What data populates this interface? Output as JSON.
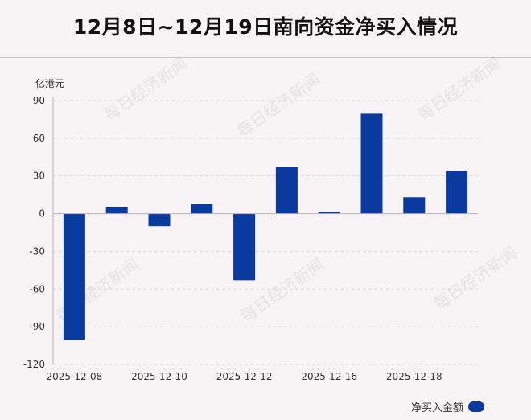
{
  "title": "12月8日~12月19日南向资金净买入情况",
  "watermark": "每日经济新闻",
  "legend_label": "净买入金额",
  "colors": {
    "bar": "#0b3a9e",
    "grid": "#d9d3d6",
    "axis": "#b8b2b5"
  },
  "chart_data": {
    "type": "bar",
    "unit_label": "亿港元",
    "categories": [
      "2025-12-08",
      "2025-12-09",
      "2025-12-10",
      "2025-12-11",
      "2025-12-12",
      "2025-12-15",
      "2025-12-16",
      "2025-12-17",
      "2025-12-18",
      "2025-12-19"
    ],
    "x_tick_labels": [
      "2025-12-08",
      "2025-12-10",
      "2025-12-12",
      "2025-12-16",
      "2025-12-18"
    ],
    "x_tick_indices": [
      0,
      2,
      4,
      6,
      8
    ],
    "series": [
      {
        "name": "净买入金额",
        "values": [
          -100.5,
          5.5,
          -10,
          8,
          -53,
          37,
          1,
          79.5,
          13,
          34
        ]
      }
    ],
    "yticks": [
      90,
      60,
      30,
      0,
      -30,
      -60,
      -90,
      -120
    ],
    "ylim": [
      -120,
      90
    ],
    "grid": true,
    "legend_position": "bottom-right"
  }
}
